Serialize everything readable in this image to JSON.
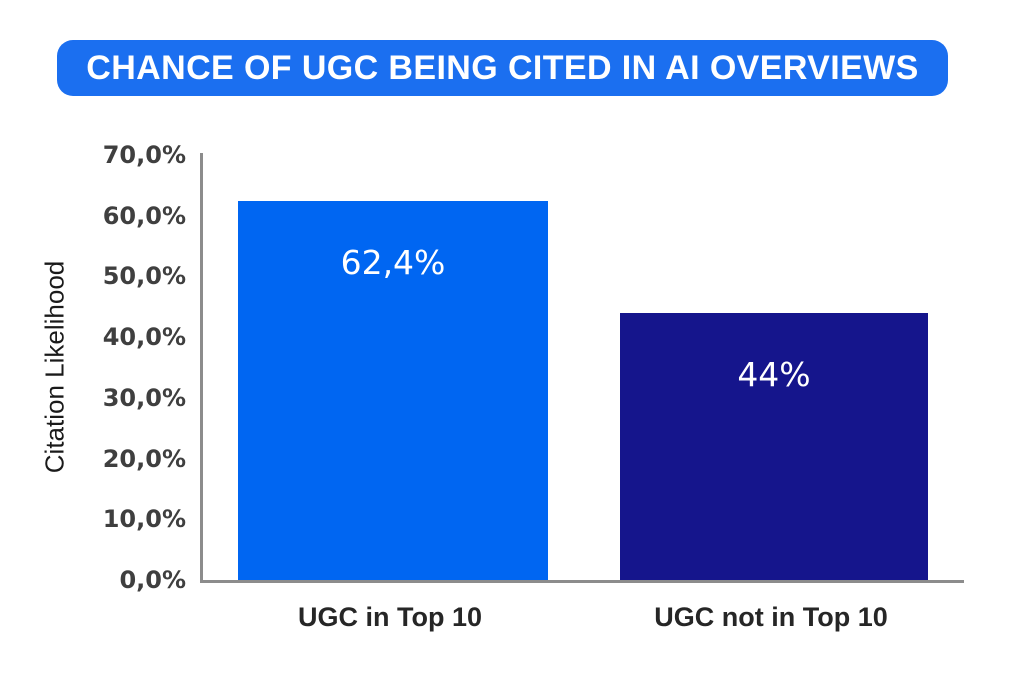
{
  "banner": {
    "label": "CHANCE OF UGC BEING CITED IN AI OVERVIEWS",
    "bg_color": "#1B6FF0",
    "text_color": "#FFFFFF"
  },
  "chart_data": {
    "type": "bar",
    "title": "CHANCE OF UGC BEING CITED IN AI OVERVIEWS",
    "xlabel": "",
    "ylabel": "Citation Likelihood",
    "categories": [
      "UGC in Top 10",
      "UGC not in Top 10"
    ],
    "values": [
      62.4,
      44
    ],
    "value_labels": [
      "62,4%",
      "44%"
    ],
    "bar_colors": [
      "#0066F2",
      "#15158C"
    ],
    "ylim": [
      0,
      70
    ],
    "y_ticks": [
      "70,0%",
      "60,0%",
      "50,0%",
      "40,0%",
      "30,0%",
      "20,0%",
      "10,0%",
      "0,0%"
    ],
    "grid": false,
    "legend_position": "none",
    "axis_color": "#8C8C8C",
    "tick_label_color": "#3F3F3F"
  }
}
